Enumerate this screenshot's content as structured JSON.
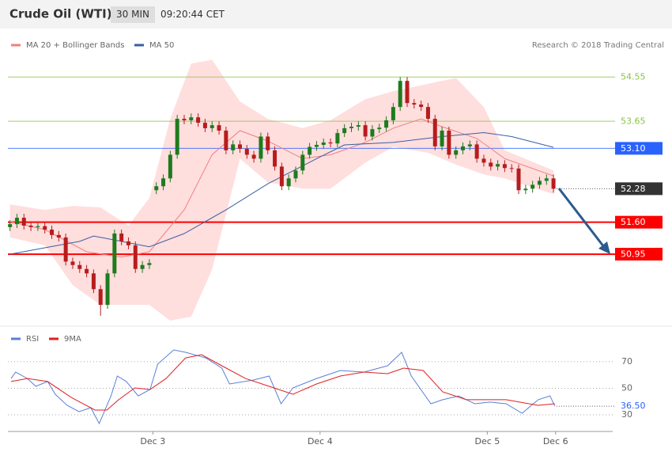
{
  "header": {
    "title": "Crude Oil (WTI)",
    "timeframe": "30 MIN",
    "time": "09:20:44 CET"
  },
  "chart_data": [
    {
      "type": "candlestick",
      "source": "Research © 2018 Trading Central",
      "xlim": [
        -0.3,
        86.5
      ],
      "ylim": [
        49.52,
        55.47
      ],
      "candles": {
        "up_color": "#1e7b1e",
        "down_color": "#b71c1c",
        "open": [
          51.5,
          51.56,
          51.69,
          51.53,
          51.5,
          51.52,
          51.45,
          51.34,
          51.29,
          50.8,
          50.73,
          50.65,
          50.56,
          50.24,
          49.92,
          50.56,
          51.37,
          51.21,
          51.13,
          50.65,
          50.73,
          52.25,
          52.33,
          52.49,
          52.97,
          53.7,
          53.67,
          53.73,
          53.62,
          53.51,
          53.57,
          53.46,
          53.06,
          53.18,
          53.09,
          52.97,
          52.89,
          53.34,
          53.06,
          52.73,
          52.33,
          52.49,
          52.65,
          52.97,
          53.13,
          53.17,
          53.22,
          53.2,
          53.41,
          53.51,
          53.54,
          53.57,
          53.34,
          53.49,
          53.52,
          53.67,
          53.94,
          54.47,
          54.02,
          53.99,
          53.94,
          53.7,
          53.14,
          53.46,
          52.97,
          53.06,
          53.14,
          53.18,
          52.89,
          52.81,
          52.73,
          52.78,
          52.7,
          52.69,
          52.25,
          52.28,
          52.36,
          52.44,
          52.49
        ],
        "high": [
          51.64,
          51.77,
          51.77,
          51.61,
          51.6,
          51.6,
          51.53,
          51.42,
          51.37,
          50.88,
          50.81,
          50.73,
          50.64,
          50.32,
          50.64,
          51.45,
          51.45,
          51.29,
          51.21,
          50.81,
          50.85,
          52.41,
          52.57,
          53.05,
          53.78,
          53.78,
          53.81,
          53.81,
          53.7,
          53.65,
          53.65,
          53.54,
          53.26,
          53.26,
          53.17,
          53.05,
          53.42,
          53.42,
          53.14,
          52.81,
          52.57,
          52.73,
          53.05,
          53.21,
          53.25,
          53.3,
          53.3,
          53.49,
          53.59,
          53.62,
          53.65,
          53.65,
          53.57,
          53.6,
          53.75,
          54.02,
          54.55,
          54.55,
          54.1,
          54.07,
          54.02,
          53.78,
          53.54,
          53.54,
          53.14,
          53.22,
          53.26,
          53.26,
          52.97,
          52.89,
          52.86,
          52.86,
          52.78,
          52.77,
          52.36,
          52.44,
          52.52,
          52.57,
          52.57
        ],
        "low": [
          51.42,
          51.48,
          51.45,
          51.42,
          51.42,
          51.37,
          51.26,
          51.21,
          50.72,
          50.65,
          50.57,
          50.48,
          50.16,
          49.7,
          49.84,
          50.48,
          51.13,
          51.05,
          50.57,
          50.57,
          50.65,
          52.17,
          52.25,
          52.41,
          52.89,
          53.59,
          53.59,
          53.54,
          53.43,
          53.43,
          53.38,
          52.98,
          52.98,
          53.01,
          52.89,
          52.81,
          52.81,
          52.98,
          52.65,
          52.25,
          52.25,
          52.41,
          52.57,
          52.89,
          53.05,
          53.09,
          53.12,
          53.12,
          53.33,
          53.43,
          53.46,
          53.26,
          53.26,
          53.41,
          53.44,
          53.59,
          53.86,
          53.94,
          53.91,
          53.86,
          53.62,
          53.06,
          53.06,
          52.89,
          52.89,
          52.98,
          53.06,
          52.81,
          52.73,
          52.65,
          52.65,
          52.62,
          52.61,
          52.17,
          52.17,
          52.2,
          52.28,
          52.36,
          52.2
        ],
        "close": [
          51.56,
          51.69,
          51.53,
          51.5,
          51.52,
          51.45,
          51.34,
          51.29,
          50.8,
          50.73,
          50.65,
          50.56,
          50.24,
          49.92,
          50.56,
          51.37,
          51.21,
          51.13,
          50.65,
          50.73,
          50.77,
          52.33,
          52.49,
          52.97,
          53.7,
          53.67,
          53.73,
          53.62,
          53.51,
          53.57,
          53.46,
          53.06,
          53.18,
          53.09,
          52.97,
          52.89,
          53.34,
          53.06,
          52.73,
          52.33,
          52.49,
          52.65,
          52.97,
          53.13,
          53.17,
          53.22,
          53.2,
          53.41,
          53.51,
          53.54,
          53.57,
          53.34,
          53.49,
          53.52,
          53.67,
          53.94,
          54.47,
          54.02,
          53.99,
          53.94,
          53.7,
          53.14,
          53.46,
          52.97,
          53.06,
          53.14,
          53.18,
          52.89,
          52.81,
          52.73,
          52.78,
          52.7,
          52.69,
          52.25,
          52.28,
          52.36,
          52.44,
          52.49,
          52.28
        ]
      },
      "bands": {
        "color": "#ffdede",
        "x": [
          0,
          5,
          9,
          13,
          17,
          20,
          23,
          26,
          29,
          33,
          37,
          42,
          46,
          51,
          55,
          60,
          64,
          68,
          71,
          78
        ],
        "upper": [
          51.96,
          51.85,
          51.93,
          51.9,
          51.53,
          52.09,
          53.7,
          54.82,
          54.9,
          54.05,
          53.7,
          53.51,
          53.67,
          54.1,
          54.26,
          54.41,
          54.53,
          53.94,
          53.06,
          52.65
        ],
        "lower": [
          51.29,
          51.13,
          50.32,
          49.92,
          49.92,
          49.92,
          49.6,
          49.68,
          50.64,
          52.89,
          52.41,
          52.28,
          52.28,
          52.81,
          53.13,
          53.01,
          52.77,
          52.57,
          52.49,
          52.17
        ]
      },
      "series": [
        {
          "name": "MA 20 + Bollinger Bands",
          "color": "#f08080",
          "x": [
            0,
            5,
            11,
            16,
            20,
            25,
            29,
            33,
            37,
            42,
            46,
            51,
            55,
            59,
            62,
            67,
            71,
            78
          ],
          "values": [
            51.61,
            51.45,
            51.0,
            50.89,
            51.0,
            51.85,
            52.97,
            53.46,
            53.25,
            52.89,
            52.97,
            53.22,
            53.51,
            53.7,
            53.54,
            53.3,
            52.89,
            52.54
          ]
        },
        {
          "name": "MA 50",
          "color": "#3a5fa0",
          "x": [
            0,
            10,
            12,
            20,
            25,
            31,
            37,
            44,
            48,
            55,
            62,
            68,
            72,
            78
          ],
          "values": [
            50.95,
            51.21,
            51.32,
            51.1,
            51.37,
            51.85,
            52.38,
            52.89,
            53.17,
            53.22,
            53.34,
            53.42,
            53.34,
            53.12
          ]
        }
      ],
      "levels": [
        {
          "value": 54.55,
          "label": "54.55",
          "color": "#8bc34a",
          "style": "text"
        },
        {
          "value": 53.65,
          "label": "53.65",
          "color": "#8bc34a",
          "style": "text"
        },
        {
          "value": 53.1,
          "label": "53.10",
          "color": "#2962ff",
          "style": "box"
        },
        {
          "value": 51.6,
          "label": "51.60",
          "color": "#ff0000",
          "style": "box"
        },
        {
          "value": 50.95,
          "label": "50.95",
          "color": "#ff0000",
          "style": "box"
        }
      ],
      "last": {
        "value": 52.28,
        "label": "52.28",
        "color": "#333333"
      }
    },
    {
      "type": "line",
      "xlim": [
        -0.3,
        86.5
      ],
      "ylim": [
        20.5,
        92
      ],
      "yticks": [
        30,
        50,
        70
      ],
      "xticks": [
        {
          "value": 20.5,
          "label": "Dec 3"
        },
        {
          "value": 44.5,
          "label": "Dec 4"
        },
        {
          "value": 68.5,
          "label": "Dec 5"
        },
        {
          "value": 78.3,
          "label": "Dec 6"
        }
      ],
      "series": [
        {
          "name": "RSI",
          "color": "#5b7fd6",
          "x": [
            0.15,
            0.8,
            2.5,
            3.7,
            5.4,
            6.5,
            8.2,
            9.9,
            11.6,
            12.8,
            14.5,
            15.4,
            16.7,
            18.4,
            20.1,
            21.2,
            23.5,
            25.2,
            28.1,
            30.4,
            31.5,
            34.9,
            37.2,
            38.9,
            40.6,
            44,
            47.4,
            50.8,
            54.2,
            56.2,
            57.6,
            60.4,
            62.1,
            64.4,
            66.7,
            68.9,
            71.2,
            73.5,
            75.8,
            77.5,
            78.2
          ],
          "values": [
            57.4,
            62.2,
            57.4,
            51.5,
            55.1,
            45.5,
            37.2,
            32.4,
            35.4,
            23.5,
            44.3,
            59.2,
            55.1,
            44.3,
            49.1,
            68.2,
            78.9,
            77.1,
            72.9,
            65.2,
            53.3,
            56.2,
            59.2,
            38.4,
            50.3,
            57.4,
            63.4,
            62.2,
            67.0,
            77.1,
            59.2,
            38.4,
            41.4,
            44.3,
            38.4,
            39.6,
            38.4,
            31.2,
            41.4,
            44.3,
            36.5
          ]
        },
        {
          "name": "9MA",
          "color": "#e02020",
          "x": [
            0.15,
            2.5,
            5.4,
            8.8,
            12.2,
            13.9,
            15.6,
            17.9,
            20.1,
            22.4,
            25.2,
            27.5,
            30.4,
            33.8,
            37.2,
            40.6,
            44,
            47.4,
            50.8,
            54.2,
            56.5,
            59.3,
            62.1,
            65.5,
            71.2,
            75.8,
            78.2
          ],
          "values": [
            55.1,
            57.4,
            55.1,
            43.1,
            33.6,
            33.6,
            41.4,
            50.3,
            49.1,
            57.4,
            72.9,
            75.3,
            67.0,
            57.4,
            51.5,
            45.5,
            53.3,
            59.2,
            62.2,
            61.0,
            65.2,
            63.4,
            47.3,
            41.4,
            41.4,
            37.2,
            38.4
          ]
        }
      ],
      "last": {
        "value": 36.5,
        "label": "36.50",
        "color": "#2962ff"
      }
    }
  ]
}
